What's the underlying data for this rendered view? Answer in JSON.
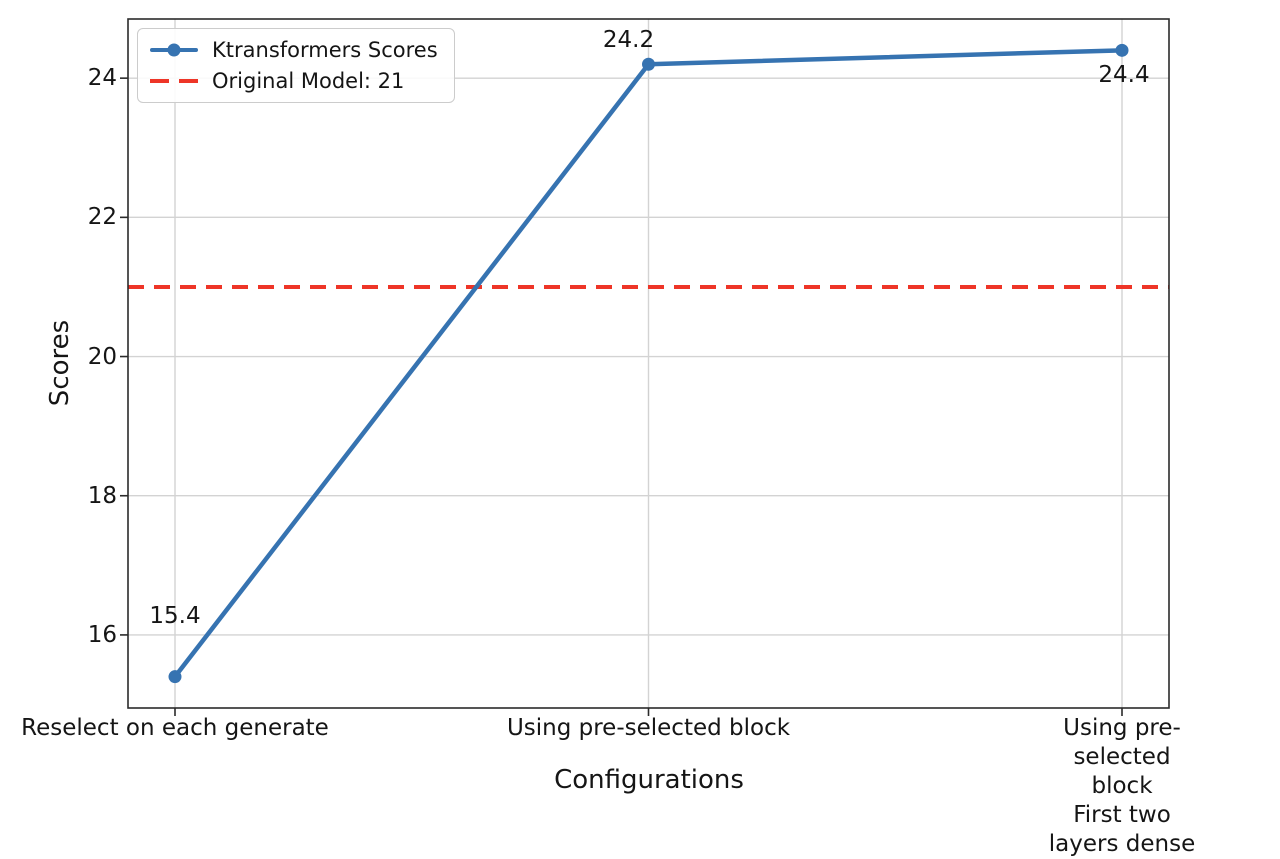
{
  "chart_data": {
    "type": "line",
    "title": "",
    "xlabel": "Configurations",
    "ylabel": "Scores",
    "categories": [
      "Reselect on each generate",
      "Using pre-selected block",
      "Using pre-selected block\nFirst two layers dense"
    ],
    "series": [
      {
        "name": "Ktransformers Scores",
        "values": [
          15.4,
          24.2,
          24.4
        ],
        "color": "#3673b1",
        "marker": "circle"
      }
    ],
    "reference_line": {
      "label": "Original Model: 21",
      "value": 21,
      "color": "#ee3527",
      "style": "dashed"
    },
    "data_labels": [
      "15.4",
      "24.2",
      "24.4"
    ],
    "ytick_values": [
      16,
      18,
      20,
      22,
      24
    ],
    "ylim": [
      14.95,
      24.85
    ],
    "grid": true,
    "legend_position": "upper-left"
  }
}
